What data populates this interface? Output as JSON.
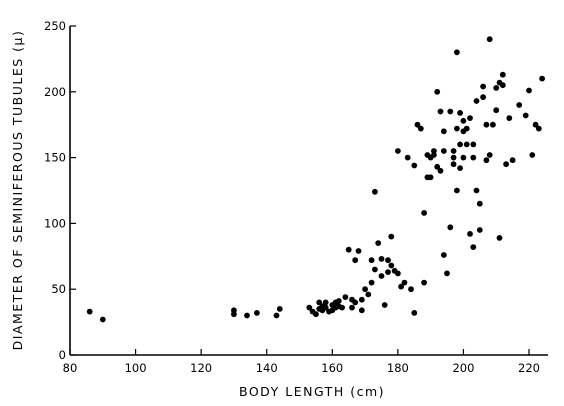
{
  "chart_data": {
    "type": "scatter",
    "title": "",
    "xlabel": "BODY LENGTH (cm)",
    "ylabel": "DIAMETER OF SEMINIFEROUS TUBULES (μ)",
    "xlim": [
      80,
      225
    ],
    "ylim": [
      0,
      250
    ],
    "xticks": [
      80,
      100,
      120,
      140,
      160,
      180,
      200,
      220
    ],
    "yticks": [
      0,
      50,
      100,
      150,
      200,
      250
    ],
    "xtick_labels": [
      "80",
      "100",
      "120",
      "140",
      "160",
      "180",
      "200",
      "220"
    ],
    "ytick_labels": [
      "0",
      "50",
      "100",
      "150",
      "200",
      "250"
    ],
    "grid": false,
    "legend": "none",
    "series": [
      {
        "x": [
          86,
          90,
          130,
          130,
          134,
          137,
          143,
          144,
          153,
          154,
          155,
          156,
          156,
          157,
          157,
          158,
          158,
          159,
          160,
          160,
          161,
          161,
          162,
          162,
          163,
          164,
          165,
          166,
          166,
          167,
          167,
          168,
          169,
          169,
          170,
          171,
          172,
          172,
          173,
          173,
          174,
          175,
          175,
          176,
          177,
          177,
          178,
          178,
          179,
          180,
          180,
          181,
          182,
          183,
          184,
          185,
          185,
          186,
          187,
          188,
          188,
          189,
          189,
          190,
          190,
          191,
          191,
          192,
          192,
          193,
          193,
          194,
          194,
          194,
          195,
          196,
          196,
          197,
          197,
          197,
          198,
          198,
          198,
          199,
          199,
          199,
          200,
          200,
          200,
          201,
          201,
          202,
          202,
          203,
          203,
          203,
          204,
          204,
          205,
          205,
          206,
          206,
          207,
          207,
          208,
          208,
          209,
          210,
          210,
          211,
          211,
          212,
          212,
          213,
          214,
          215,
          217,
          219,
          220,
          221,
          222,
          223,
          224
        ],
        "y": [
          33,
          27,
          34,
          31,
          30,
          32,
          30,
          35,
          36,
          33,
          31,
          40,
          35,
          37,
          34,
          40,
          36,
          33,
          38,
          34,
          36,
          40,
          41,
          37,
          36,
          44,
          80,
          42,
          36,
          72,
          40,
          79,
          42,
          34,
          50,
          46,
          72,
          55,
          124,
          65,
          85,
          60,
          73,
          38,
          63,
          72,
          68,
          90,
          64,
          155,
          62,
          52,
          55,
          150,
          50,
          32,
          144,
          175,
          172,
          108,
          55,
          135,
          152,
          150,
          135,
          155,
          152,
          200,
          143,
          185,
          140,
          155,
          76,
          170,
          62,
          97,
          185,
          155,
          150,
          145,
          230,
          172,
          125,
          160,
          184,
          142,
          178,
          150,
          170,
          172,
          160,
          92,
          180,
          150,
          160,
          82,
          125,
          193,
          95,
          115,
          204,
          196,
          175,
          148,
          240,
          152,
          175,
          203,
          186,
          89,
          207,
          205,
          213,
          145,
          180,
          148,
          190,
          182,
          201,
          152,
          175,
          172,
          210
        ]
      }
    ]
  }
}
